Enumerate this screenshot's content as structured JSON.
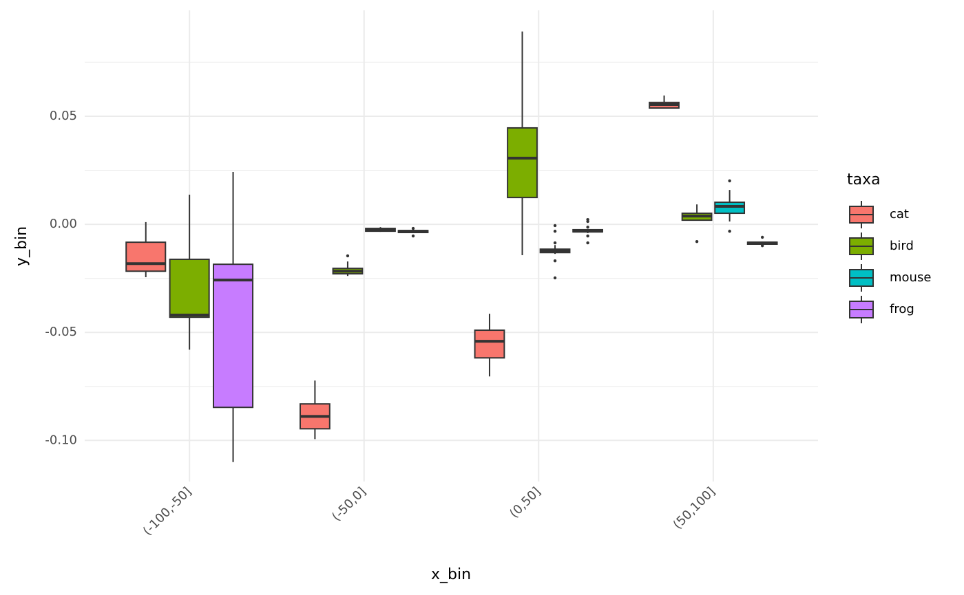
{
  "chart_data": {
    "type": "boxplot",
    "x_label": "x_bin",
    "y_label": "y_bin",
    "legend_title": "taxa",
    "categories": [
      "(-100,-50]",
      "(-50,0]",
      "(0,50]",
      "(50,100]"
    ],
    "ylim": [
      -0.119,
      0.099
    ],
    "yticks": [
      {
        "value": -0.1,
        "label": "-0.10"
      },
      -0.05,
      {
        "value": 0,
        "label": "0.00"
      },
      0.05
    ],
    "yminor": [
      -0.075,
      -0.025,
      0.025,
      0.075
    ],
    "grid": true,
    "legend_position": "right",
    "series": [
      {
        "name": "cat",
        "color": "#F8766D",
        "boxes": [
          {
            "min": -0.0245,
            "q1": -0.0217,
            "median": -0.0182,
            "q3": -0.0083,
            "max": 0.001,
            "outliers": []
          },
          {
            "min": -0.0994,
            "q1": -0.0946,
            "median": -0.0889,
            "q3": -0.0831,
            "max": -0.0723,
            "outliers": []
          },
          {
            "min": -0.0704,
            "q1": -0.0618,
            "median": -0.0541,
            "q3": -0.049,
            "max": -0.0414,
            "outliers": []
          },
          {
            "min": 0.0538,
            "q1": 0.0538,
            "median": 0.0554,
            "q3": 0.0564,
            "max": 0.0596,
            "outliers": []
          }
        ]
      },
      {
        "name": "bird",
        "color": "#7CAE00",
        "boxes": [
          {
            "min": -0.058,
            "q1": -0.043,
            "median": -0.042,
            "q3": -0.0162,
            "max": 0.0137,
            "outliers": []
          },
          {
            "min": -0.0239,
            "q1": -0.0229,
            "median": -0.0217,
            "q3": -0.0204,
            "max": -0.0172,
            "outliers": [
              -0.0146
            ]
          },
          {
            "min": -0.0143,
            "q1": 0.0124,
            "median": 0.0306,
            "q3": 0.0446,
            "max": 0.0892,
            "outliers": []
          },
          {
            "min": 0.0019,
            "q1": 0.0019,
            "median": 0.0038,
            "q3": 0.0051,
            "max": 0.0092,
            "outliers": [
              -0.008
            ]
          }
        ]
      },
      {
        "name": "mouse",
        "color": "#00BFC4",
        "boxes": [
          null,
          {
            "min": -0.0035,
            "q1": -0.0032,
            "median": -0.0025,
            "q3": -0.0019,
            "max": -0.0013,
            "outliers": []
          },
          {
            "min": -0.0137,
            "q1": -0.0131,
            "median": -0.0124,
            "q3": -0.0115,
            "max": -0.0096,
            "outliers": [
              -0.0086,
              -0.0032,
              -0.0006,
              -0.0169,
              -0.0248
            ]
          },
          {
            "min": 0.0013,
            "q1": 0.0051,
            "median": 0.0083,
            "q3": 0.0102,
            "max": 0.0159,
            "outliers": [
              0.0201,
              -0.0032
            ]
          }
        ]
      },
      {
        "name": "frog",
        "color": "#C77CFF",
        "boxes": [
          {
            "min": -0.11,
            "q1": -0.0847,
            "median": -0.0258,
            "q3": -0.0185,
            "max": 0.0242,
            "outliers": []
          },
          {
            "min": -0.0041,
            "q1": -0.0038,
            "median": -0.0032,
            "q3": -0.0029,
            "max": -0.0022,
            "outliers": [
              -0.0054,
              -0.0019
            ]
          },
          {
            "min": -0.0041,
            "q1": -0.0035,
            "median": -0.0032,
            "q3": -0.0025,
            "max": -0.0022,
            "outliers": [
              0.0022,
              0.0013,
              -0.0013,
              -0.0054,
              -0.0086
            ]
          },
          {
            "min": -0.0096,
            "q1": -0.0092,
            "median": -0.0086,
            "q3": -0.0083,
            "max": -0.008,
            "outliers": [
              -0.006,
              -0.0099
            ]
          }
        ]
      }
    ]
  }
}
